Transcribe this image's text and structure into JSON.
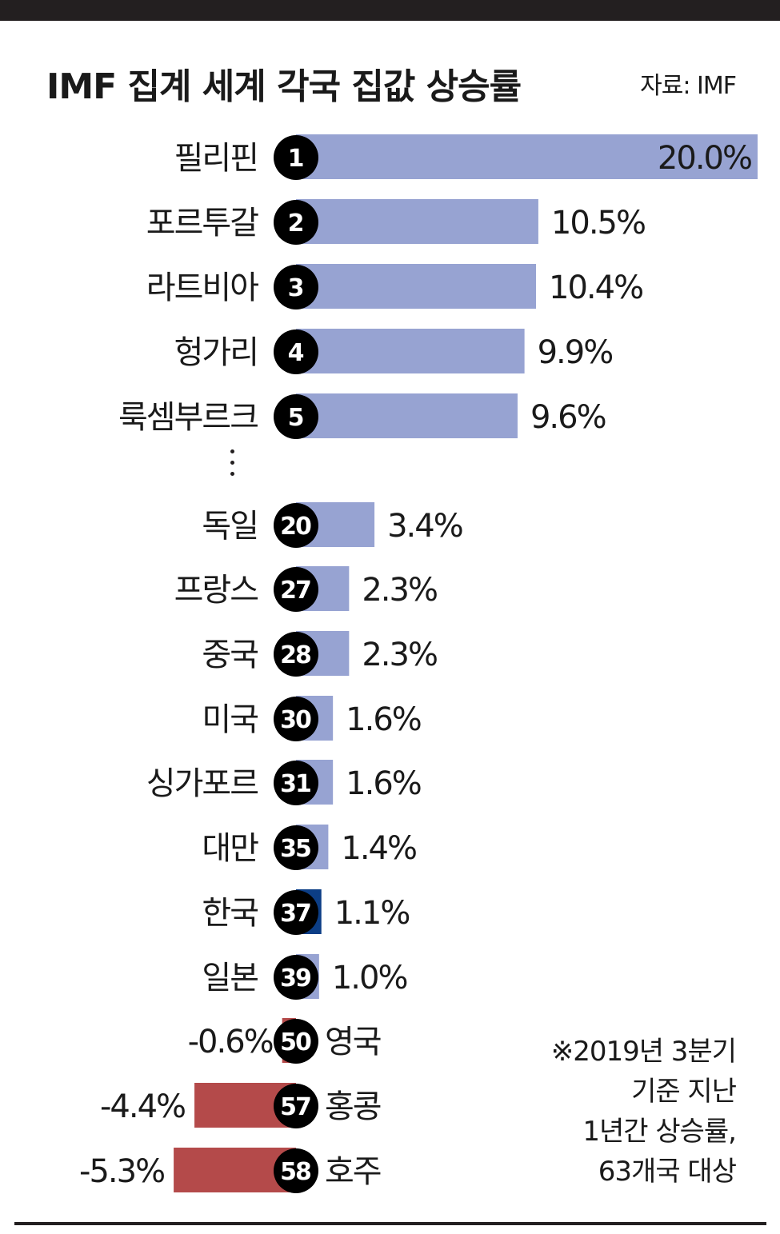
{
  "title": "IMF 집계 세계 각국 집값 상승률",
  "source": "자료: IMF",
  "note": [
    "※2019년 3분기",
    "기준 지난",
    "1년간 상승률,",
    "63개국 대상"
  ],
  "colors": {
    "positive": "#97a3d2",
    "highlight": "#0c3e86",
    "negative": "#b44a4a",
    "rank_circle": "#000000"
  },
  "chart_data": {
    "type": "bar",
    "orientation": "horizontal",
    "title": "IMF 집계 세계 각국 집값 상승률",
    "unit": "%",
    "categories": [
      "필리핀",
      "포르투갈",
      "라트비아",
      "헝가리",
      "룩셈부르크",
      "독일",
      "프랑스",
      "중국",
      "미국",
      "싱가포르",
      "대만",
      "한국",
      "일본",
      "영국",
      "홍콩",
      "호주"
    ],
    "ranks": [
      1,
      2,
      3,
      4,
      5,
      20,
      27,
      28,
      30,
      31,
      35,
      37,
      39,
      50,
      57,
      58
    ],
    "values": [
      20.0,
      10.5,
      10.4,
      9.9,
      9.6,
      3.4,
      2.3,
      2.3,
      1.6,
      1.6,
      1.4,
      1.1,
      1.0,
      -0.6,
      -4.4,
      -5.3
    ],
    "value_labels": [
      "20.0%",
      "10.5%",
      "10.4%",
      "9.9%",
      "9.6%",
      "3.4%",
      "2.3%",
      "2.3%",
      "1.6%",
      "1.6%",
      "1.4%",
      "1.1%",
      "1.0%",
      "-0.6%",
      "-4.4%",
      "-5.3%"
    ],
    "highlight": "한국",
    "gap_after": "룩셈부르크"
  }
}
